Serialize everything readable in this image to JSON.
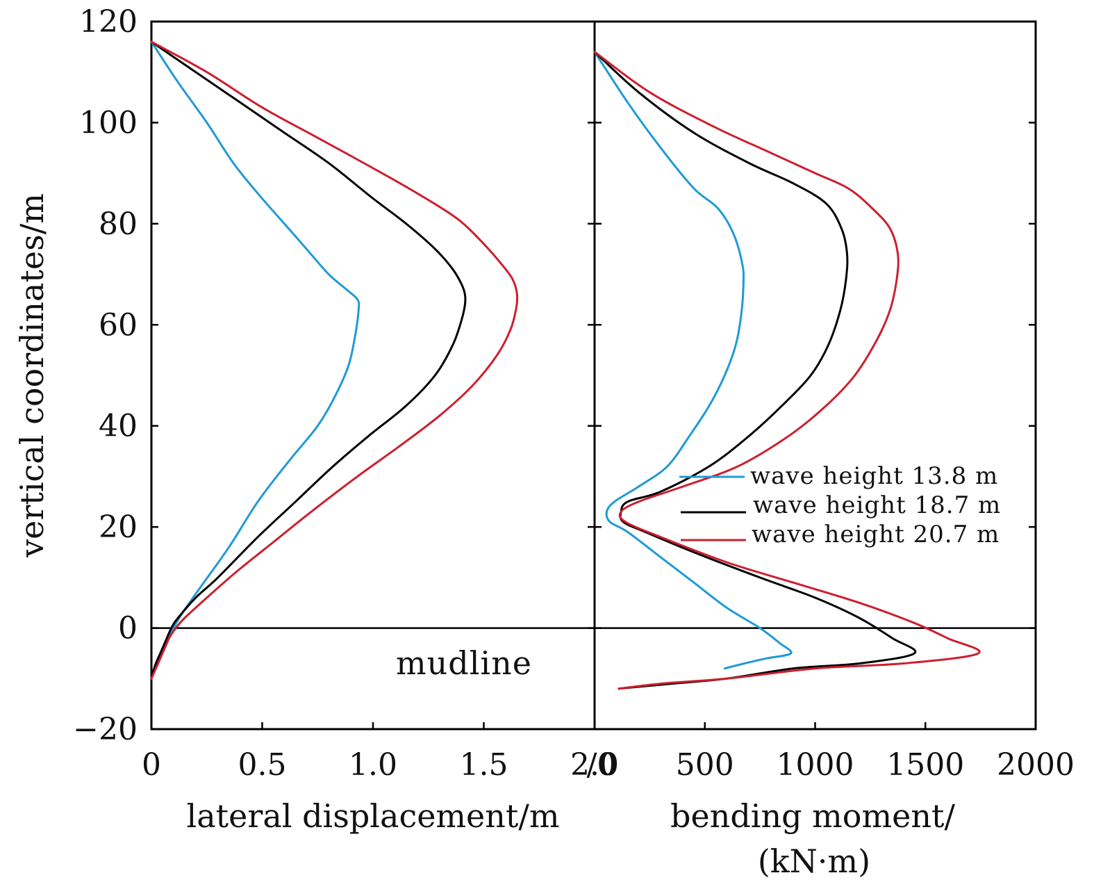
{
  "chart_data": [
    {
      "type": "line",
      "panel": "left",
      "xlabel": "lateral displacement/m",
      "ylabel": "vertical coordinates/m",
      "xlim": [
        0,
        2.0
      ],
      "ylim": [
        -20,
        120
      ],
      "xticks": [
        "0",
        "0.5",
        "1.0",
        "1.5",
        "2.0"
      ],
      "yticks": [
        "−20",
        "0",
        "20",
        "40",
        "60",
        "80",
        "100",
        "120"
      ],
      "annotation": "mudline",
      "mudline_y": 0,
      "series": [
        {
          "name": "wave height 13.8 m",
          "color": "#1f9ad6",
          "points": [
            [
              0.0,
              116
            ],
            [
              0.12,
              108
            ],
            [
              0.25,
              100
            ],
            [
              0.37,
              92
            ],
            [
              0.48,
              86
            ],
            [
              0.6,
              80
            ],
            [
              0.7,
              75
            ],
            [
              0.8,
              70
            ],
            [
              0.88,
              67
            ],
            [
              0.93,
              65
            ],
            [
              0.935,
              63
            ],
            [
              0.92,
              58
            ],
            [
              0.89,
              52
            ],
            [
              0.83,
              46
            ],
            [
              0.75,
              40
            ],
            [
              0.62,
              33
            ],
            [
              0.48,
              25
            ],
            [
              0.35,
              16
            ],
            [
              0.22,
              8
            ],
            [
              0.14,
              3
            ],
            [
              0.1,
              0
            ],
            [
              0.07,
              -3
            ],
            [
              0.05,
              -5
            ],
            [
              0.03,
              -7
            ],
            [
              0.01,
              -9
            ],
            [
              0.0,
              -10
            ]
          ]
        },
        {
          "name": "wave height 18.7 m",
          "color": "#000000",
          "points": [
            [
              0.0,
              116
            ],
            [
              0.2,
              110
            ],
            [
              0.4,
              104
            ],
            [
              0.6,
              98
            ],
            [
              0.8,
              92
            ],
            [
              1.0,
              85
            ],
            [
              1.15,
              80
            ],
            [
              1.28,
              75
            ],
            [
              1.36,
              71
            ],
            [
              1.4,
              68
            ],
            [
              1.415,
              66
            ],
            [
              1.415,
              64
            ],
            [
              1.4,
              61
            ],
            [
              1.36,
              56
            ],
            [
              1.28,
              50
            ],
            [
              1.15,
              44
            ],
            [
              0.98,
              38
            ],
            [
              0.82,
              32
            ],
            [
              0.65,
              25
            ],
            [
              0.48,
              18
            ],
            [
              0.3,
              10
            ],
            [
              0.2,
              6
            ],
            [
              0.12,
              2
            ],
            [
              0.09,
              0
            ],
            [
              0.06,
              -3
            ],
            [
              0.04,
              -5
            ],
            [
              0.02,
              -7
            ],
            [
              0.005,
              -9
            ],
            [
              0.0,
              -10
            ]
          ]
        },
        {
          "name": "wave height 20.7 m",
          "color": "#cc1f2e",
          "points": [
            [
              0.0,
              116
            ],
            [
              0.25,
              110
            ],
            [
              0.5,
              103
            ],
            [
              0.75,
              97
            ],
            [
              1.0,
              91
            ],
            [
              1.2,
              86
            ],
            [
              1.38,
              81
            ],
            [
              1.5,
              76
            ],
            [
              1.58,
              72
            ],
            [
              1.63,
              69
            ],
            [
              1.65,
              66
            ],
            [
              1.645,
              63
            ],
            [
              1.62,
              59
            ],
            [
              1.56,
              54
            ],
            [
              1.45,
              48
            ],
            [
              1.3,
              42
            ],
            [
              1.12,
              36
            ],
            [
              0.93,
              30
            ],
            [
              0.75,
              24
            ],
            [
              0.55,
              17
            ],
            [
              0.38,
              11
            ],
            [
              0.25,
              6
            ],
            [
              0.15,
              2
            ],
            [
              0.11,
              0
            ],
            [
              0.08,
              -2
            ],
            [
              0.05,
              -5
            ],
            [
              0.03,
              -7
            ],
            [
              0.01,
              -9
            ],
            [
              0.0,
              -10
            ]
          ]
        }
      ]
    },
    {
      "type": "line",
      "panel": "right",
      "xlabel": "bending moment/ (kN·m)",
      "xlabel_lines": [
        "bending moment/",
        "(kN·m)"
      ],
      "xlim": [
        0,
        2000
      ],
      "ylim": [
        -20,
        120
      ],
      "xticks": [
        "/0",
        "500",
        "1000",
        "1500",
        "2000"
      ],
      "mudline_y": 0,
      "legend_position": "center-right",
      "series": [
        {
          "name": "wave height 13.8 m",
          "color": "#1f9ad6",
          "points": [
            [
              0,
              114
            ],
            [
              150,
              104
            ],
            [
              300,
              95
            ],
            [
              450,
              87
            ],
            [
              560,
              83
            ],
            [
              630,
              78
            ],
            [
              670,
              72
            ],
            [
              675,
              68
            ],
            [
              665,
              62
            ],
            [
              640,
              56
            ],
            [
              590,
              50
            ],
            [
              520,
              44
            ],
            [
              430,
              38
            ],
            [
              330,
              32
            ],
            [
              200,
              28
            ],
            [
              90,
              25
            ],
            [
              55,
              23
            ],
            [
              70,
              21
            ],
            [
              150,
              19
            ],
            [
              300,
              14
            ],
            [
              450,
              9
            ],
            [
              600,
              4
            ],
            [
              750,
              0
            ],
            [
              840,
              -3
            ],
            [
              890,
              -5
            ],
            [
              780,
              -6
            ],
            [
              680,
              -7
            ],
            [
              590,
              -8
            ]
          ]
        },
        {
          "name": "wave height 18.7 m",
          "color": "#000000",
          "points": [
            [
              0,
              114
            ],
            [
              200,
              106
            ],
            [
              450,
              98
            ],
            [
              700,
              92
            ],
            [
              900,
              88
            ],
            [
              1050,
              84
            ],
            [
              1120,
              79
            ],
            [
              1145,
              74
            ],
            [
              1140,
              69
            ],
            [
              1115,
              63
            ],
            [
              1060,
              56
            ],
            [
              980,
              50
            ],
            [
              850,
              44
            ],
            [
              700,
              38
            ],
            [
              520,
              32
            ],
            [
              300,
              27
            ],
            [
              150,
              25
            ],
            [
              120,
              23
            ],
            [
              130,
              21
            ],
            [
              230,
              19
            ],
            [
              450,
              15
            ],
            [
              750,
              10
            ],
            [
              1000,
              6
            ],
            [
              1200,
              2
            ],
            [
              1350,
              -2
            ],
            [
              1450,
              -5
            ],
            [
              1200,
              -7
            ],
            [
              900,
              -8
            ],
            [
              600,
              -10
            ],
            [
              350,
              -11
            ],
            [
              110,
              -12
            ]
          ]
        },
        {
          "name": "wave height 20.7 m",
          "color": "#cc1f2e",
          "points": [
            [
              0,
              114
            ],
            [
              250,
              106
            ],
            [
              550,
              99
            ],
            [
              800,
              94
            ],
            [
              1000,
              90
            ],
            [
              1150,
              87
            ],
            [
              1260,
              83
            ],
            [
              1340,
              79
            ],
            [
              1375,
              74
            ],
            [
              1370,
              69
            ],
            [
              1340,
              63
            ],
            [
              1280,
              57
            ],
            [
              1180,
              50
            ],
            [
              1050,
              44
            ],
            [
              880,
              38
            ],
            [
              650,
              32
            ],
            [
              400,
              28
            ],
            [
              200,
              25
            ],
            [
              120,
              23
            ],
            [
              140,
              21
            ],
            [
              300,
              18
            ],
            [
              600,
              13
            ],
            [
              900,
              9
            ],
            [
              1200,
              5
            ],
            [
              1450,
              1
            ],
            [
              1600,
              -2
            ],
            [
              1740,
              -5
            ],
            [
              1400,
              -7
            ],
            [
              1000,
              -8
            ],
            [
              600,
              -10
            ],
            [
              300,
              -11
            ],
            [
              110,
              -12
            ]
          ]
        }
      ]
    }
  ]
}
